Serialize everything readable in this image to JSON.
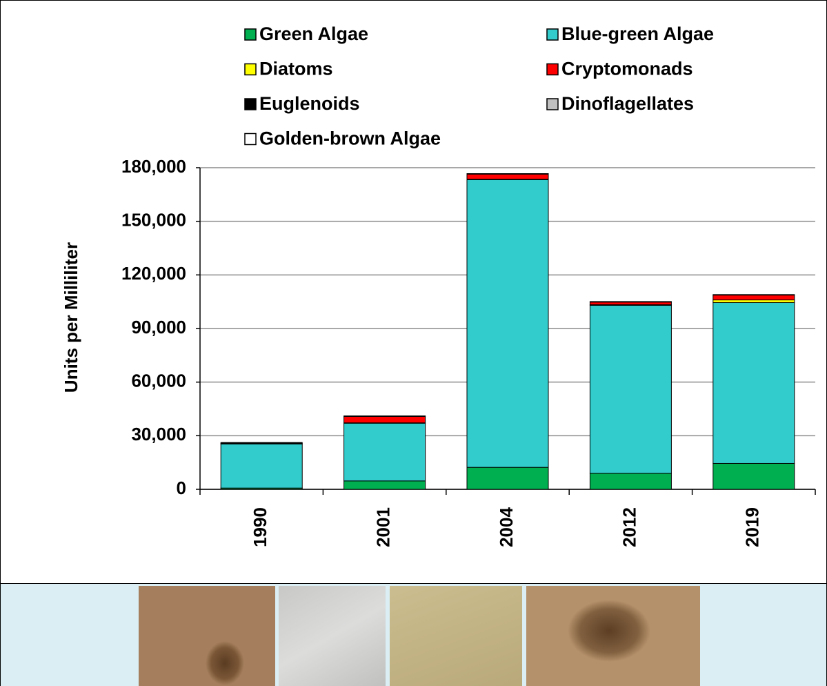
{
  "chart_data": {
    "type": "stacked-bar",
    "y_label": "Units per Milliliter",
    "categories": [
      "1990",
      "2001",
      "2004",
      "2012",
      "2019"
    ],
    "series": [
      {
        "name": "Green Algae",
        "color": "#00b050",
        "values": [
          700,
          4700,
          12300,
          9000,
          14500
        ]
      },
      {
        "name": "Blue-green Algae",
        "color": "#33cccc",
        "values": [
          24700,
          32300,
          161000,
          94000,
          90000
        ]
      },
      {
        "name": "Diatoms",
        "color": "#ffff00",
        "values": [
          0,
          200,
          300,
          300,
          1500
        ]
      },
      {
        "name": "Cryptomonads",
        "color": "#ff0000",
        "values": [
          200,
          3600,
          2800,
          1500,
          2700
        ]
      },
      {
        "name": "Euglenoids",
        "color": "#000000",
        "values": [
          600,
          300,
          300,
          300,
          300
        ]
      },
      {
        "name": "Dinoflagellates",
        "color": "#c0c0c0",
        "values": [
          0,
          0,
          0,
          0,
          0
        ]
      },
      {
        "name": "Golden-brown Algae",
        "color": "#ffffff",
        "values": [
          0,
          0,
          0,
          0,
          0
        ]
      }
    ],
    "ylim": [
      0,
      180000
    ],
    "yticks": [
      0,
      {
        "value": 30000,
        "label": "30,000"
      },
      {
        "value": 60000,
        "label": "60,000"
      },
      {
        "value": 90000,
        "label": "90,000"
      },
      {
        "value": 120000,
        "label": "120,000"
      },
      {
        "value": 150000,
        "label": "150,000"
      },
      {
        "value": 180000,
        "label": "180,000"
      }
    ],
    "grid": true
  }
}
